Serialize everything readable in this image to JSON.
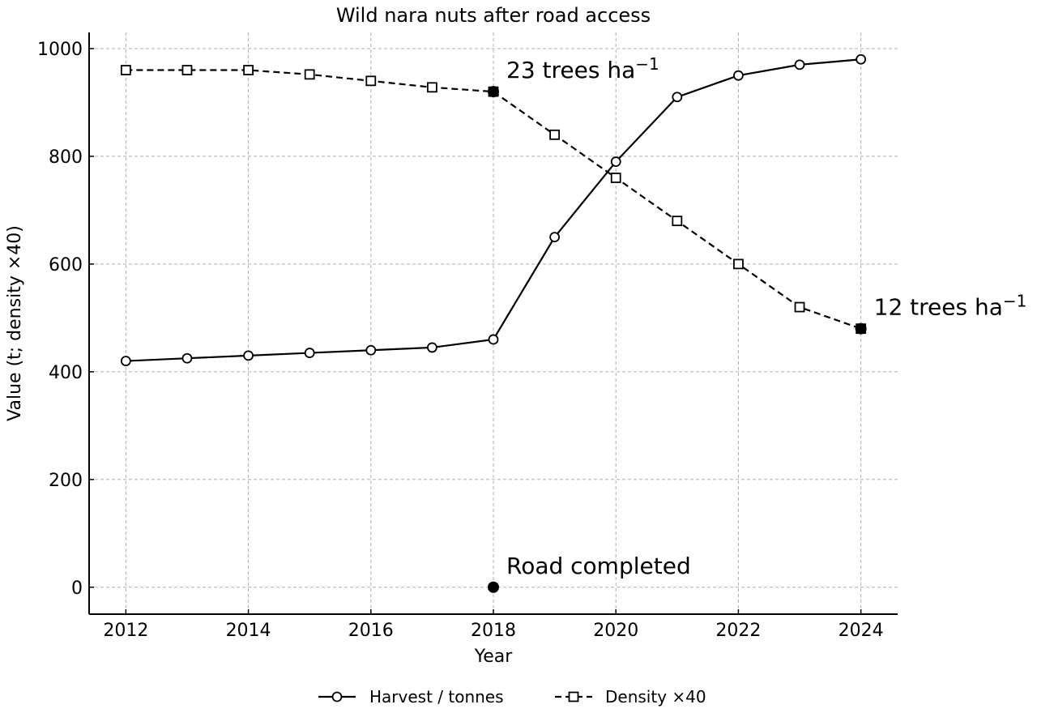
{
  "chart_data": {
    "type": "line",
    "title": "Wild nara nuts after road access",
    "xlabel": "Year",
    "ylabel": "Value (t; density ×40)",
    "xlim": [
      2011.4,
      2024.6
    ],
    "ylim": [
      -50,
      1030
    ],
    "xticks": [
      2012,
      2014,
      2016,
      2018,
      2020,
      2022,
      2024
    ],
    "yticks": [
      0,
      200,
      400,
      600,
      800,
      1000
    ],
    "grid": true,
    "legend_position": "bottom-center",
    "x": [
      2012,
      2013,
      2014,
      2015,
      2016,
      2017,
      2018,
      2019,
      2020,
      2021,
      2022,
      2023,
      2024
    ],
    "series": [
      {
        "name": "Harvest / tonnes",
        "style": "solid",
        "marker": "circle",
        "color": "#000000",
        "values": [
          420,
          425,
          430,
          435,
          440,
          445,
          460,
          650,
          790,
          910,
          950,
          970,
          980
        ]
      },
      {
        "name": "Density ×40",
        "style": "dashed",
        "marker": "square",
        "color": "#000000",
        "values": [
          960,
          960,
          960,
          952,
          940,
          928,
          920,
          840,
          760,
          680,
          600,
          520,
          480
        ]
      }
    ],
    "annotations": [
      {
        "text": "23 trees ha",
        "sup": "−1",
        "point": [
          2018,
          920
        ],
        "marker": "filled-circle"
      },
      {
        "text": "12 trees ha",
        "sup": "−1",
        "point": [
          2024,
          480
        ],
        "marker": "filled-circle"
      },
      {
        "text": "Road completed",
        "sup": "",
        "point": [
          2018,
          0
        ],
        "marker": "filled-circle"
      }
    ]
  }
}
